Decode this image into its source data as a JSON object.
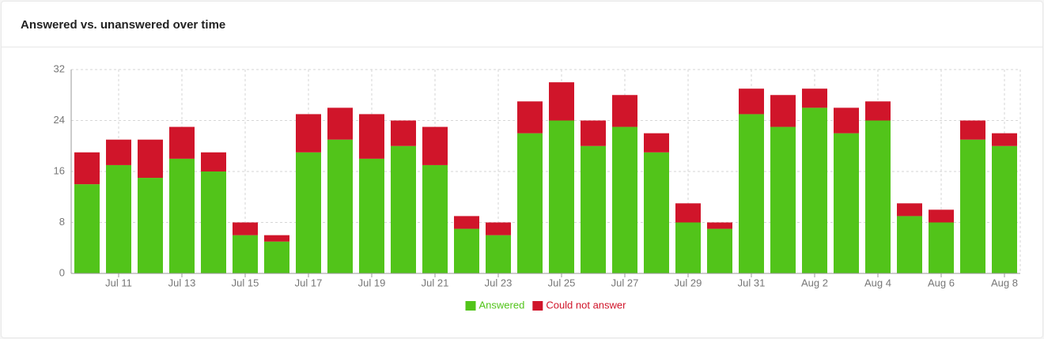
{
  "chart_data": {
    "type": "stacked-bar",
    "title": "Answered vs. unanswered over time",
    "categories": [
      null,
      "Jul 11",
      null,
      "Jul 13",
      null,
      "Jul 15",
      null,
      "Jul 17",
      null,
      "Jul 19",
      null,
      "Jul 21",
      null,
      "Jul 23",
      null,
      "Jul 25",
      null,
      "Jul 27",
      null,
      "Jul 29",
      null,
      "Jul 31",
      null,
      "Aug 2",
      null,
      "Aug 4",
      null,
      "Aug 6",
      null,
      "Aug 8"
    ],
    "series": [
      {
        "name": "Answered",
        "color": "#52c41a",
        "values": [
          14,
          17,
          15,
          18,
          16,
          6,
          5,
          19,
          21,
          18,
          20,
          17,
          7,
          6,
          22,
          24,
          20,
          23,
          19,
          8,
          7,
          25,
          23,
          26,
          22,
          24,
          9,
          8,
          21,
          20
        ]
      },
      {
        "name": "Could not answer",
        "color": "#d0152a",
        "values": [
          5,
          4,
          6,
          5,
          3,
          2,
          1,
          6,
          5,
          7,
          4,
          6,
          2,
          2,
          5,
          6,
          4,
          5,
          3,
          3,
          1,
          4,
          5,
          3,
          4,
          3,
          2,
          2,
          3,
          2
        ]
      }
    ],
    "ylim": [
      0,
      32
    ],
    "yticks": [
      0,
      8,
      16,
      24,
      32
    ],
    "grid": true,
    "legend": "bottom"
  }
}
